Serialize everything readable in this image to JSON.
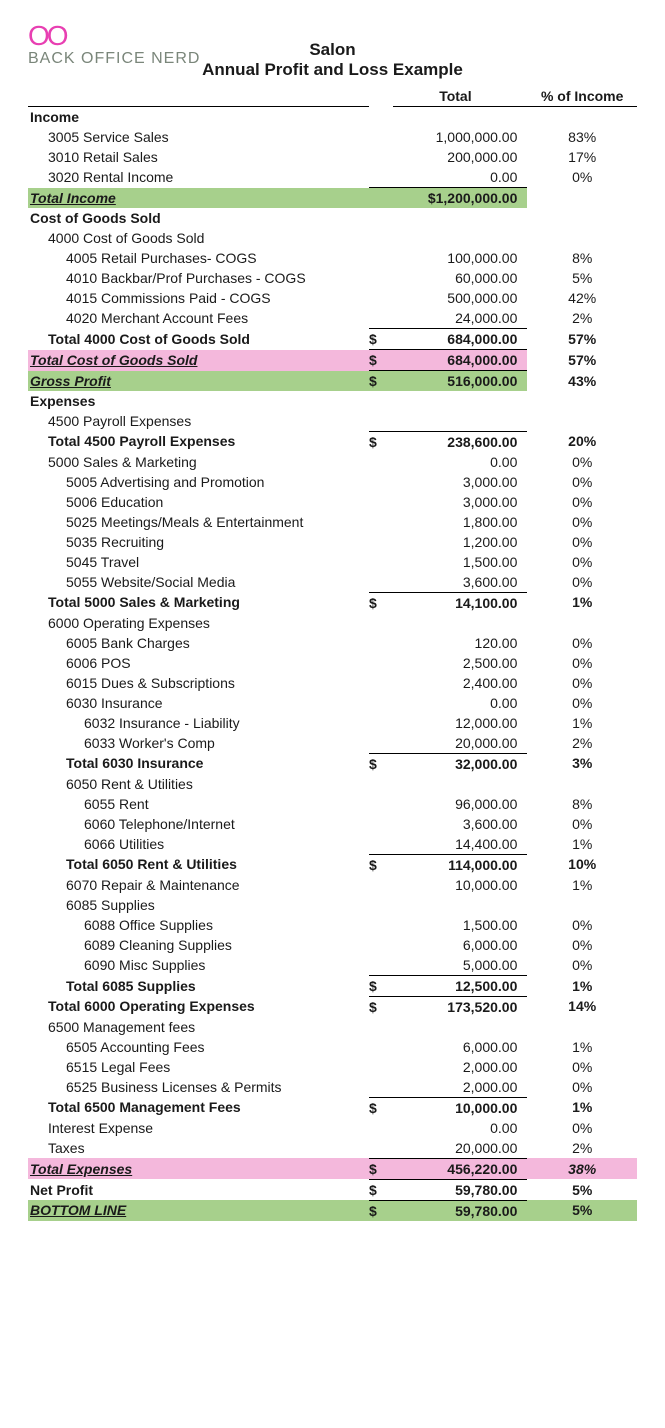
{
  "logo": {
    "top": "OO",
    "text": "BACK OFFICE NERD"
  },
  "title1": "Salon",
  "title2": "Annual Profit and Loss Example",
  "headers": {
    "total": "Total",
    "pct": "% of Income"
  },
  "colors": {
    "green": "#a7d08c",
    "pink": "#f4b8dc",
    "accent": "#e83fb2"
  },
  "rows": [
    {
      "label": "Income",
      "ind": 0,
      "bold": true
    },
    {
      "label": "3005 Service Sales",
      "ind": 1,
      "amt": "1,000,000.00",
      "pct": "83%"
    },
    {
      "label": "3010 Retail Sales",
      "ind": 1,
      "amt": "200,000.00",
      "pct": "17%"
    },
    {
      "label": "3020 Rental Income",
      "ind": 1,
      "amt": "0.00",
      "pct": "0%"
    },
    {
      "label": "Total Income",
      "ind": 0,
      "amt": "$1,200,000.00",
      "bold": true,
      "bt": true,
      "hl": "green",
      "iu": true
    },
    {
      "label": "Cost of Goods Sold",
      "ind": 0,
      "bold": true
    },
    {
      "label": "4000 Cost of Goods Sold",
      "ind": 1
    },
    {
      "label": "4005 Retail Purchases- COGS",
      "ind": 2,
      "amt": "100,000.00",
      "pct": "8%"
    },
    {
      "label": "4010 Backbar/Prof Purchases - COGS",
      "ind": 2,
      "amt": "60,000.00",
      "pct": "5%"
    },
    {
      "label": "4015 Commissions Paid - COGS",
      "ind": 2,
      "amt": "500,000.00",
      "pct": "42%"
    },
    {
      "label": "4020 Merchant Account Fees",
      "ind": 2,
      "amt": "24,000.00",
      "pct": "2%"
    },
    {
      "label": "Total 4000 Cost of Goods Sold",
      "ind": 1,
      "cur": "$",
      "amt": "684,000.00",
      "pct": "57%",
      "bold": true,
      "bt": true
    },
    {
      "label": "Total Cost of Goods Sold",
      "ind": 0,
      "cur": "$",
      "amt": "684,000.00",
      "pct": "57%",
      "bold": true,
      "bt": true,
      "hl": "pink",
      "iu": true
    },
    {
      "label": "Gross Profit",
      "ind": 0,
      "cur": "$",
      "amt": "516,000.00",
      "pct": "43%",
      "bold": true,
      "bt": true,
      "hl": "green",
      "iu": true
    },
    {
      "label": "Expenses",
      "ind": 0,
      "bold": true
    },
    {
      "label": "4500 Payroll Expenses",
      "ind": 1
    },
    {
      "label": "Total 4500 Payroll Expenses",
      "ind": 1,
      "cur": "$",
      "amt": "238,600.00",
      "pct": "20%",
      "bold": true,
      "bt": true
    },
    {
      "label": "5000 Sales & Marketing",
      "ind": 1,
      "amt": "0.00",
      "pct": "0%"
    },
    {
      "label": "5005 Advertising and Promotion",
      "ind": 2,
      "amt": "3,000.00",
      "pct": "0%"
    },
    {
      "label": "5006 Education",
      "ind": 2,
      "amt": "3,000.00",
      "pct": "0%"
    },
    {
      "label": "5025 Meetings/Meals & Entertainment",
      "ind": 2,
      "amt": "1,800.00",
      "pct": "0%"
    },
    {
      "label": "5035 Recruiting",
      "ind": 2,
      "amt": "1,200.00",
      "pct": "0%"
    },
    {
      "label": "5045 Travel",
      "ind": 2,
      "amt": "1,500.00",
      "pct": "0%"
    },
    {
      "label": "5055 Website/Social Media",
      "ind": 2,
      "amt": "3,600.00",
      "pct": "0%"
    },
    {
      "label": "Total 5000 Sales & Marketing",
      "ind": 1,
      "cur": "$",
      "amt": "14,100.00",
      "pct": "1%",
      "bold": true,
      "bt": true
    },
    {
      "label": "6000 Operating Expenses",
      "ind": 1
    },
    {
      "label": "6005 Bank Charges",
      "ind": 2,
      "amt": "120.00",
      "pct": "0%"
    },
    {
      "label": "6006 POS",
      "ind": 2,
      "amt": "2,500.00",
      "pct": "0%"
    },
    {
      "label": "6015 Dues & Subscriptions",
      "ind": 2,
      "amt": "2,400.00",
      "pct": "0%"
    },
    {
      "label": "6030 Insurance",
      "ind": 2,
      "amt": "0.00",
      "pct": "0%"
    },
    {
      "label": "6032 Insurance - Liability",
      "ind": 3,
      "amt": "12,000.00",
      "pct": "1%"
    },
    {
      "label": "6033 Worker's Comp",
      "ind": 3,
      "amt": "20,000.00",
      "pct": "2%"
    },
    {
      "label": "Total 6030 Insurance",
      "ind": 2,
      "cur": "$",
      "amt": "32,000.00",
      "pct": "3%",
      "bold": true,
      "bt": true
    },
    {
      "label": "6050 Rent & Utilities",
      "ind": 2
    },
    {
      "label": "6055 Rent",
      "ind": 3,
      "amt": "96,000.00",
      "pct": "8%"
    },
    {
      "label": "6060 Telephone/Internet",
      "ind": 3,
      "amt": "3,600.00",
      "pct": "0%"
    },
    {
      "label": "6066 Utilities",
      "ind": 3,
      "amt": "14,400.00",
      "pct": "1%"
    },
    {
      "label": "Total 6050 Rent & Utilities",
      "ind": 2,
      "cur": "$",
      "amt": "114,000.00",
      "pct": "10%",
      "bold": true,
      "bt": true
    },
    {
      "label": "6070 Repair & Maintenance",
      "ind": 2,
      "amt": "10,000.00",
      "pct": "1%"
    },
    {
      "label": "6085 Supplies",
      "ind": 2
    },
    {
      "label": "6088 Office Supplies",
      "ind": 3,
      "amt": "1,500.00",
      "pct": "0%"
    },
    {
      "label": "6089 Cleaning Supplies",
      "ind": 3,
      "amt": "6,000.00",
      "pct": "0%"
    },
    {
      "label": "6090 Misc Supplies",
      "ind": 3,
      "amt": "5,000.00",
      "pct": "0%"
    },
    {
      "label": "Total 6085 Supplies",
      "ind": 2,
      "cur": "$",
      "amt": "12,500.00",
      "pct": "1%",
      "bold": true,
      "bt": true
    },
    {
      "label": "Total 6000 Operating Expenses",
      "ind": 1,
      "cur": "$",
      "amt": "173,520.00",
      "pct": "14%",
      "bold": true,
      "bt": true
    },
    {
      "label": "6500 Management fees",
      "ind": 1
    },
    {
      "label": "6505 Accounting Fees",
      "ind": 2,
      "amt": "6,000.00",
      "pct": "1%"
    },
    {
      "label": "6515 Legal Fees",
      "ind": 2,
      "amt": "2,000.00",
      "pct": "0%"
    },
    {
      "label": "6525  Business Licenses & Permits",
      "ind": 2,
      "amt": "2,000.00",
      "pct": "0%"
    },
    {
      "label": "Total 6500 Management Fees",
      "ind": 1,
      "cur": "$",
      "amt": "10,000.00",
      "pct": "1%",
      "bold": true,
      "bt": true
    },
    {
      "label": "Interest Expense",
      "ind": 1,
      "amt": "0.00",
      "pct": "0%"
    },
    {
      "label": "Taxes",
      "ind": 1,
      "amt": "20,000.00",
      "pct": "2%"
    },
    {
      "label": "Total Expenses",
      "ind": 0,
      "cur": "$",
      "amt": "456,220.00",
      "pct": "38%",
      "bold": true,
      "bt": true,
      "hl": "pinkfull",
      "iu": true,
      "pctitalic": true
    },
    {
      "label": "Net Profit",
      "ind": 0,
      "cur": "$",
      "amt": "59,780.00",
      "pct": "5%",
      "bold": true,
      "bt": true
    },
    {
      "label": " BOTTOM LINE",
      "ind": 0,
      "cur": "$",
      "amt": "59,780.00",
      "pct": "5%",
      "bold": true,
      "bt": true,
      "hl": "greenfull",
      "iu": true
    }
  ]
}
